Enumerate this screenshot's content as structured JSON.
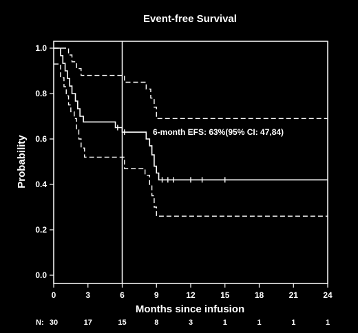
{
  "chart_data": {
    "type": "line",
    "title": "Event-free Survival",
    "xlabel": "Months since infusion",
    "ylabel": "Probability",
    "xlim": [
      0,
      24
    ],
    "ylim": [
      0,
      1.0
    ],
    "xticks": [
      0,
      3,
      6,
      9,
      12,
      15,
      18,
      21,
      24
    ],
    "yticks": [
      0.0,
      0.2,
      0.4,
      0.6,
      0.8,
      1.0
    ],
    "ytick_labels": [
      "0.0",
      "0.2",
      "0.4",
      "0.6",
      "0.8",
      "1.0"
    ],
    "reference_line_x": 6,
    "annotation": "6-month EFS: 63%(95% CI: 47,84)",
    "series": [
      {
        "style": "solid",
        "steps": [
          [
            0,
            1.0
          ],
          [
            0.6,
            0.967
          ],
          [
            0.8,
            0.933
          ],
          [
            1.0,
            0.9
          ],
          [
            1.2,
            0.867
          ],
          [
            1.4,
            0.833
          ],
          [
            1.6,
            0.8
          ],
          [
            1.9,
            0.767
          ],
          [
            2.1,
            0.733
          ],
          [
            2.3,
            0.7
          ],
          [
            2.6,
            0.675
          ],
          [
            5.4,
            0.65
          ],
          [
            6.0,
            0.63
          ],
          [
            8.1,
            0.6
          ],
          [
            8.4,
            0.57
          ],
          [
            8.6,
            0.53
          ],
          [
            8.8,
            0.48
          ],
          [
            9.0,
            0.45
          ],
          [
            9.2,
            0.42
          ],
          [
            24,
            0.42
          ]
        ],
        "censor_times": [
          5.6,
          6.2,
          9.5,
          10.0,
          10.5,
          12.0,
          13.0,
          15.0
        ]
      },
      {
        "style": "dashed",
        "steps": [
          [
            0,
            1.0
          ],
          [
            1.3,
            0.97
          ],
          [
            1.6,
            0.94
          ],
          [
            2.0,
            0.91
          ],
          [
            2.4,
            0.88
          ],
          [
            6.2,
            0.85
          ],
          [
            8.1,
            0.82
          ],
          [
            8.5,
            0.78
          ],
          [
            8.8,
            0.74
          ],
          [
            9.0,
            0.69
          ],
          [
            24,
            0.69
          ]
        ]
      },
      {
        "style": "dashed",
        "steps": [
          [
            0,
            0.93
          ],
          [
            0.6,
            0.87
          ],
          [
            0.9,
            0.83
          ],
          [
            1.1,
            0.79
          ],
          [
            1.3,
            0.75
          ],
          [
            1.5,
            0.72
          ],
          [
            1.8,
            0.69
          ],
          [
            2.0,
            0.64
          ],
          [
            2.2,
            0.6
          ],
          [
            2.4,
            0.56
          ],
          [
            2.7,
            0.52
          ],
          [
            6.2,
            0.47
          ],
          [
            8.0,
            0.44
          ],
          [
            8.4,
            0.4
          ],
          [
            8.6,
            0.35
          ],
          [
            8.8,
            0.3
          ],
          [
            9.0,
            0.26
          ],
          [
            24,
            0.26
          ]
        ]
      }
    ],
    "risk_table": {
      "label": "N:",
      "times": [
        0,
        3,
        6,
        9,
        12,
        15,
        18,
        21,
        24
      ],
      "counts": [
        "30",
        "17",
        "15",
        "8",
        "3",
        "1",
        "1",
        "1",
        "1"
      ]
    },
    "colors": {
      "background": "#000000",
      "foreground": "#ffffff"
    }
  }
}
